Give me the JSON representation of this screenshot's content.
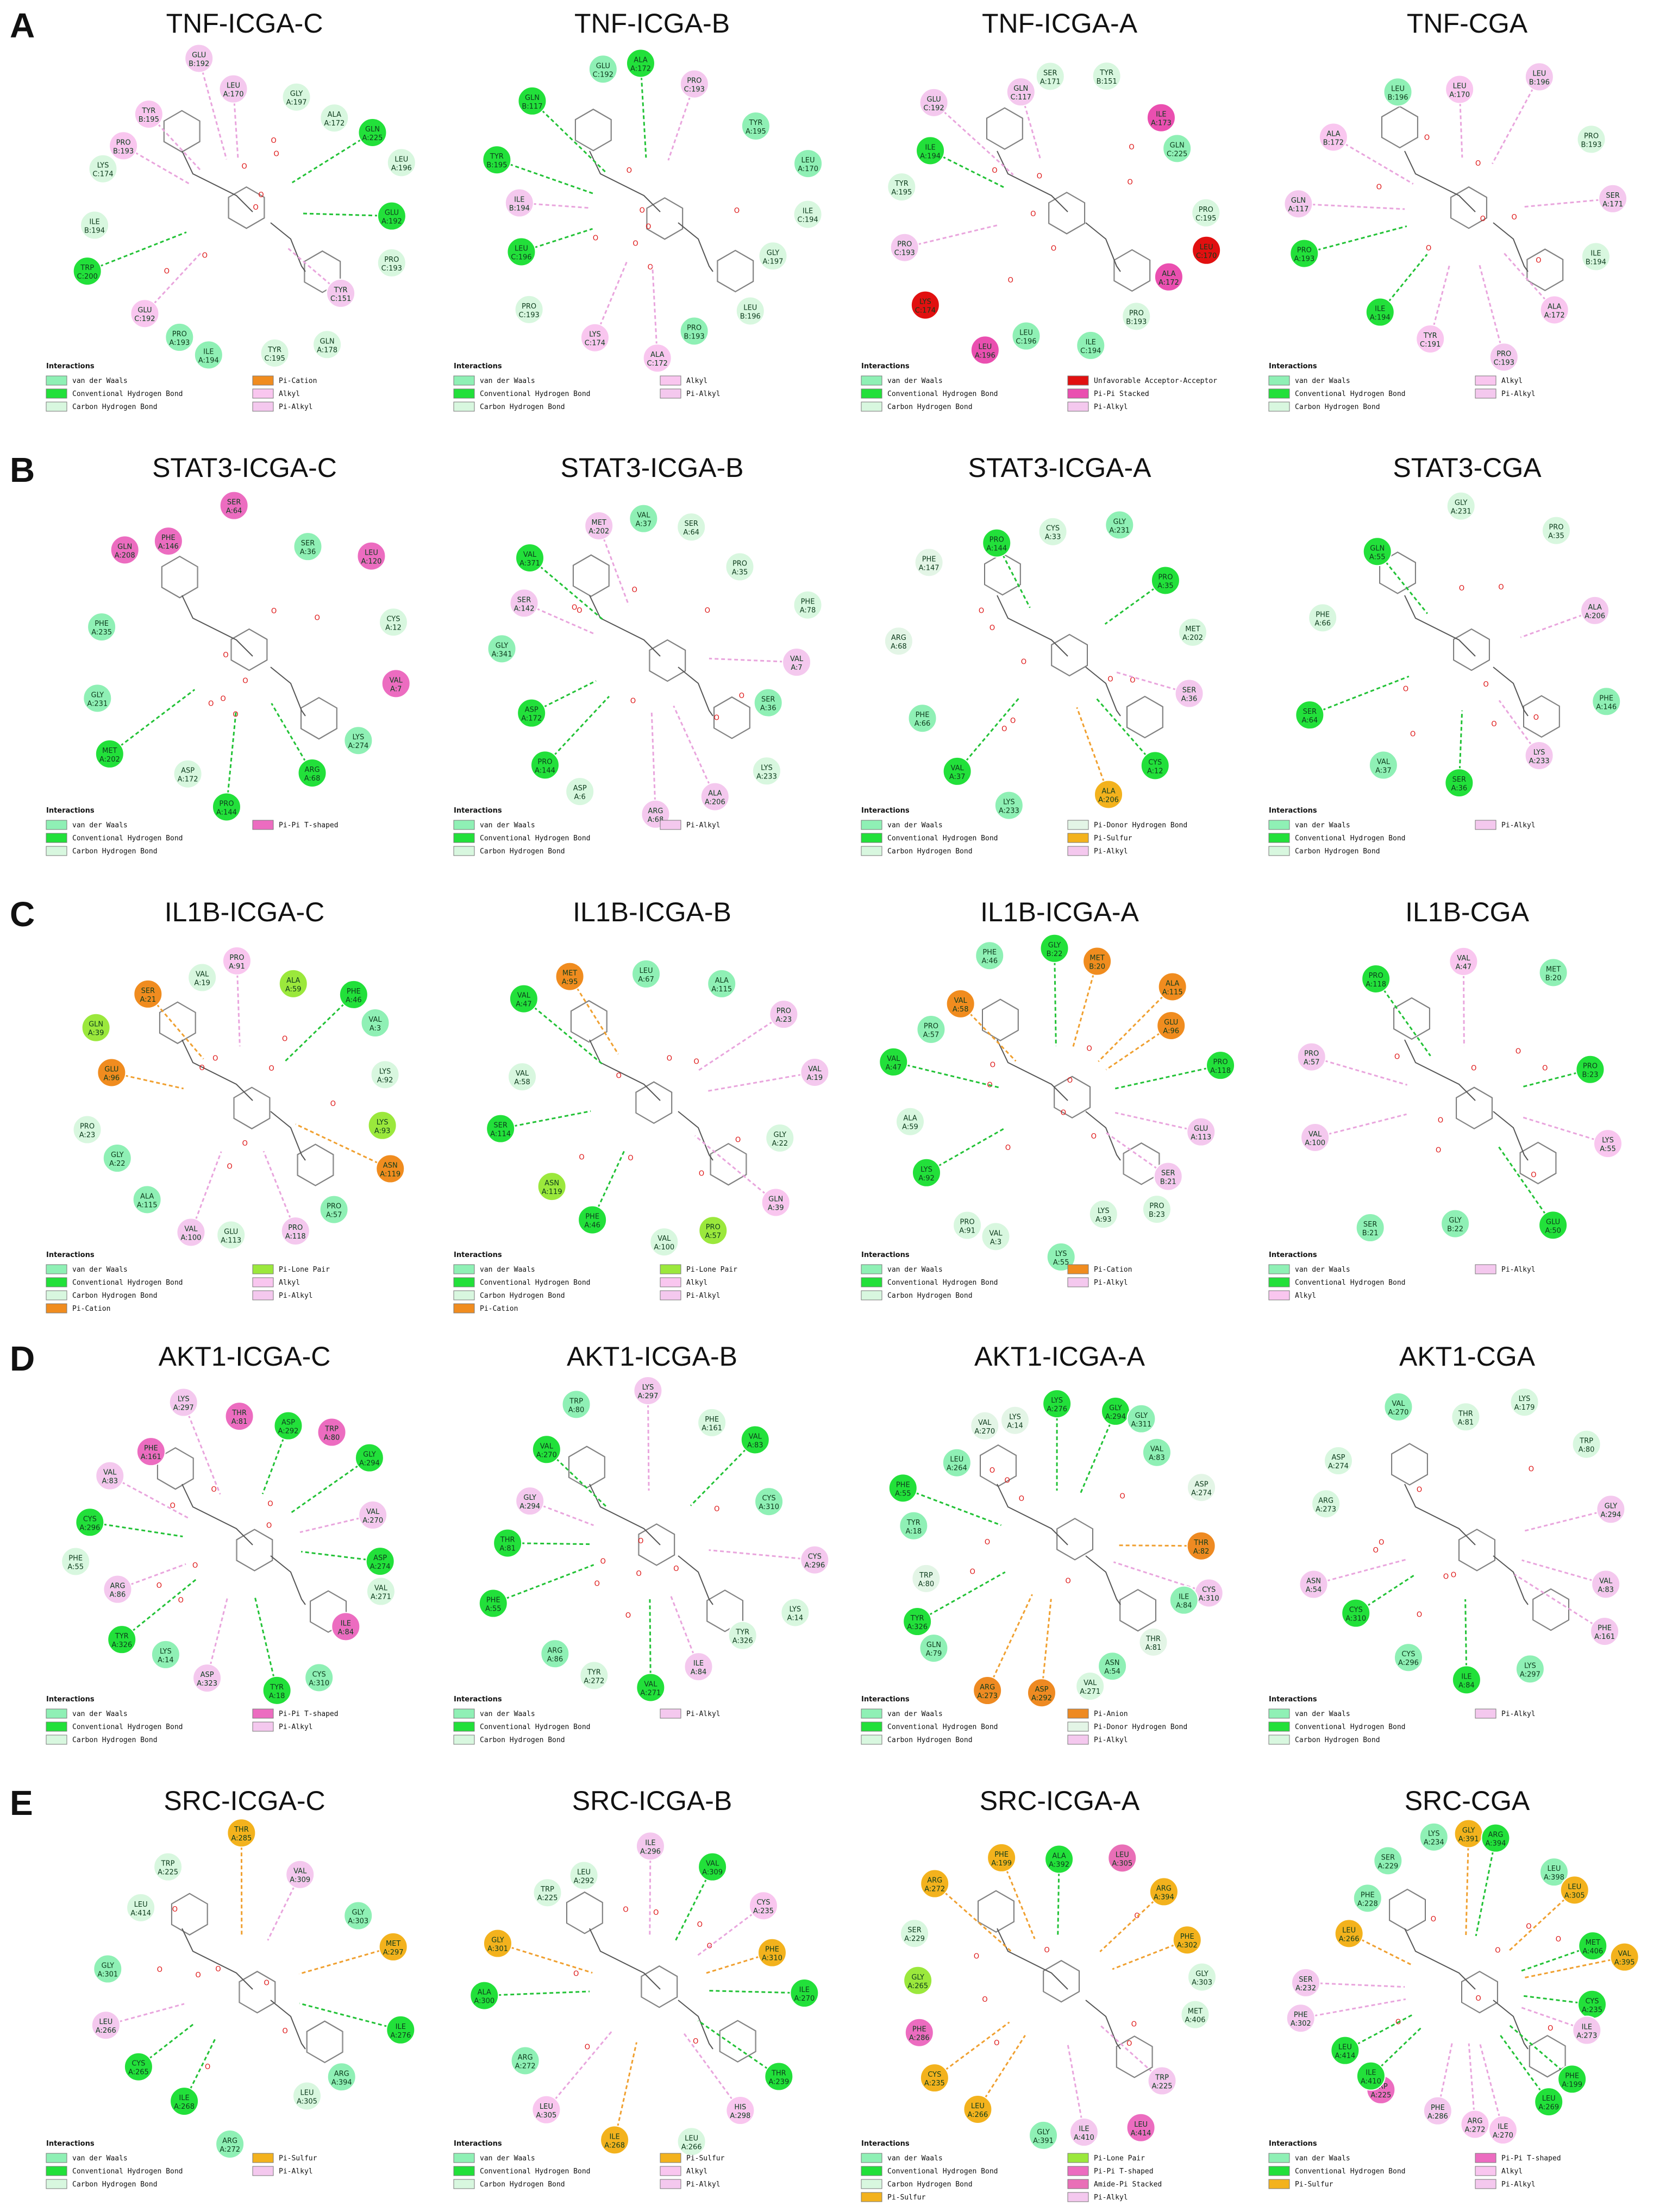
{
  "colors": {
    "van der Waals": "#8ff0b5",
    "Conventional Hydrogen Bond": "#22e03a",
    "Carbon Hydrogen Bond": "#d8f7df",
    "Pi-Cation": "#f08c1f",
    "Alkyl": "#f9c6ef",
    "Pi-Alkyl": "#f4c8ee",
    "Unfavorable Acceptor-Acceptor": "#e11010",
    "Pi-Pi Stacked": "#ea4fb0",
    "Pi-Pi T-shaped": "#ec6cc0",
    "Pi-Donor Hydrogen Bond": "#e3f5e6",
    "Pi-Sulfur": "#f3b21d",
    "Pi-Lone Pair": "#9be83c",
    "Pi-Anion": "#ee8a22",
    "Amide-Pi Stacked": "#e96fb7"
  },
  "rows": [
    {
      "letter": "A",
      "panels": [
        {
          "title": "TNF-ICGA-C",
          "legend_title": "Interactions",
          "legend": [
            "van der Waals",
            "Conventional Hydrogen Bond",
            "Carbon Hydrogen Bond",
            "Pi-Cation",
            "Alkyl",
            "Pi-Alkyl"
          ],
          "residues": [
            "LEU A:170",
            "GLY A:197",
            "ALA A:172",
            "GLN A:225",
            "LEU A:196",
            "GLU A:192",
            "PRO C:193",
            "TYR C:151",
            "GLN A:178",
            "TYR C:195",
            "ILE A:194",
            "PRO A:193",
            "GLU C:192",
            "TRP C:200",
            "ILE B:194",
            "LYS C:174",
            "PRO B:193",
            "TYR B:195",
            "GLU B:192"
          ]
        },
        {
          "title": "TNF-ICGA-B",
          "legend_title": "Interactions",
          "legend": [
            "van der Waals",
            "Conventional Hydrogen Bond",
            "Carbon Hydrogen Bond",
            "Alkyl",
            "Pi-Alkyl"
          ],
          "residues": [
            "ALA A:172",
            "PRO C:193",
            "TYR A:195",
            "LEU A:170",
            "ILE C:194",
            "GLY A:197",
            "LEU B:196",
            "PRO B:193",
            "ALA C:172",
            "LYS C:174",
            "PRO C:193",
            "LEU C:196",
            "ILE B:194",
            "TYR B:195",
            "GLN B:117",
            "GLU C:192"
          ]
        },
        {
          "title": "TNF-ICGA-A",
          "legend_title": "Interactions",
          "legend": [
            "van der Waals",
            "Conventional Hydrogen Bond",
            "Carbon Hydrogen Bond",
            "Unfavorable Acceptor-Acceptor",
            "Pi-Pi Stacked",
            "Pi-Alkyl"
          ],
          "residues": [
            "SER A:171",
            "TYR B:151",
            "ILE A:173",
            "GLN C:225",
            "PRO C:195",
            "LEU C:170",
            "ALA A:172",
            "PRO B:193",
            "ILE C:194",
            "LEU C:196",
            "LEU A:196",
            "LYS C:174",
            "PRO C:193",
            "TYR A:195",
            "ILE A:194",
            "GLU C:192",
            "GLN C:117"
          ]
        },
        {
          "title": "TNF-CGA",
          "legend_title": "Interactions",
          "legend": [
            "van der Waals",
            "Conventional Hydrogen Bond",
            "Carbon Hydrogen Bond",
            "Alkyl",
            "Pi-Alkyl"
          ],
          "residues": [
            "LEU A:170",
            "LEU B:196",
            "PRO B:193",
            "SER A:171",
            "ILE B:194",
            "ALA A:172",
            "PRO C:193",
            "TYR C:191",
            "ILE A:194",
            "PRO A:193",
            "GLN A:117",
            "ALA B:172",
            "LEU B:196"
          ]
        }
      ]
    },
    {
      "letter": "B",
      "panels": [
        {
          "title": "STAT3-ICGA-C",
          "legend_title": "Interactions",
          "legend": [
            "van der Waals",
            "Conventional Hydrogen Bond",
            "Carbon Hydrogen Bond",
            "Pi-Pi T-shaped"
          ],
          "residues": [
            "SER A:64",
            "SER A:36",
            "LEU A:120",
            "CYS A:12",
            "VAL A:7",
            "LYS A:274",
            "ARG A:68",
            "PRO A:144",
            "ASP A:172",
            "MET A:202",
            "GLY A:231",
            "PHE A:235",
            "GLN A:208",
            "PHE A:146"
          ]
        },
        {
          "title": "STAT3-ICGA-B",
          "legend_title": "Interactions",
          "legend": [
            "van der Waals",
            "Conventional Hydrogen Bond",
            "Carbon Hydrogen Bond",
            "Pi-Alkyl"
          ],
          "residues": [
            "VAL A:37",
            "SER A:64",
            "PRO A:35",
            "PHE A:78",
            "VAL A:7",
            "SER A:36",
            "LYS A:233",
            "ALA A:206",
            "ARG A:68",
            "ASP A:6",
            "PRO A:144",
            "ASP A:172",
            "GLY A:341",
            "SER A:142",
            "VAL A:371",
            "MET A:202"
          ]
        },
        {
          "title": "STAT3-ICGA-A",
          "legend_title": "Interactions",
          "legend": [
            "van der Waals",
            "Conventional Hydrogen Bond",
            "Carbon Hydrogen Bond",
            "Pi-Donor Hydrogen Bond",
            "Pi-Sulfur",
            "Pi-Alkyl"
          ],
          "residues": [
            "CYS A:33",
            "GLY A:231",
            "PRO A:35",
            "MET A:202",
            "SER A:36",
            "CYS A:12",
            "ALA A:206",
            "LYS A:233",
            "VAL A:37",
            "PHE A:66",
            "ARG A:68",
            "PHE A:147",
            "PRO A:144"
          ]
        },
        {
          "title": "STAT3-CGA",
          "legend_title": "Interactions",
          "legend": [
            "van der Waals",
            "Conventional Hydrogen Bond",
            "Carbon Hydrogen Bond",
            "Pi-Alkyl"
          ],
          "residues": [
            "GLY A:231",
            "PRO A:35",
            "ALA A:206",
            "PHE A:146",
            "LYS A:233",
            "SER A:36",
            "VAL A:37",
            "SER A:64",
            "PHE A:66",
            "GLN A:55"
          ]
        }
      ]
    },
    {
      "letter": "C",
      "panels": [
        {
          "title": "IL1B-ICGA-C",
          "legend_title": "Interactions",
          "legend": [
            "van der Waals",
            "Conventional Hydrogen Bond",
            "Carbon Hydrogen Bond",
            "Pi-Cation",
            "Pi-Lone Pair",
            "Alkyl",
            "Pi-Alkyl"
          ],
          "residues": [
            "PRO A:91",
            "ALA A:59",
            "PHE A:46",
            "VAL A:3",
            "LYS A:92",
            "LYS A:93",
            "ASN A:119",
            "PRO A:57",
            "PRO A:118",
            "GLU A:113",
            "VAL A:100",
            "ALA A:115",
            "GLY A:22",
            "PRO A:23",
            "GLU A:96",
            "GLN A:39",
            "SER A:21",
            "VAL A:19"
          ]
        },
        {
          "title": "IL1B-ICGA-B",
          "legend_title": "Interactions",
          "legend": [
            "van der Waals",
            "Conventional Hydrogen Bond",
            "Carbon Hydrogen Bond",
            "Pi-Cation",
            "Pi-Lone Pair",
            "Alkyl",
            "Pi-Alkyl"
          ],
          "residues": [
            "LEU A:67",
            "ALA A:115",
            "PRO A:23",
            "VAL A:19",
            "GLY A:22",
            "GLN A:39",
            "PRO A:57",
            "VAL A:100",
            "PHE A:46",
            "ASN A:119",
            "SER A:114",
            "VAL A:58",
            "VAL A:47",
            "MET A:95"
          ]
        },
        {
          "title": "IL1B-ICGA-A",
          "legend_title": "Interactions",
          "legend": [
            "van der Waals",
            "Conventional Hydrogen Bond",
            "Carbon Hydrogen Bond",
            "Pi-Cation",
            "Pi-Alkyl"
          ],
          "residues": [
            "GLY B:22",
            "MET B:20",
            "ALA A:115",
            "GLU A:96",
            "PRO A:118",
            "GLU A:113",
            "SER B:21",
            "PRO B:23",
            "LYS A:93",
            "LYS A:55",
            "VAL A:3",
            "PRO A:91",
            "LYS A:92",
            "ALA A:59",
            "VAL A:47",
            "PRO A:57",
            "VAL A:58",
            "PHE A:46"
          ]
        },
        {
          "title": "IL1B-CGA",
          "legend_title": "Interactions",
          "legend": [
            "van der Waals",
            "Conventional Hydrogen Bond",
            "Alkyl",
            "Pi-Alkyl"
          ],
          "residues": [
            "VAL A:47",
            "MET B:20",
            "PRO B:23",
            "LYS A:55",
            "GLU A:50",
            "GLY B:22",
            "SER B:21",
            "VAL A:100",
            "PRO A:57",
            "PRO A:118"
          ]
        }
      ]
    },
    {
      "letter": "D",
      "panels": [
        {
          "title": "AKT1-ICGA-C",
          "legend_title": "Interactions",
          "legend": [
            "van der Waals",
            "Conventional Hydrogen Bond",
            "Carbon Hydrogen Bond",
            "Pi-Pi T-shaped",
            "Pi-Alkyl"
          ],
          "residues": [
            "THR A:81",
            "ASP A:292",
            "TRP A:80",
            "GLY A:294",
            "VAL A:270",
            "ASP A:274",
            "VAL A:271",
            "ILE A:84",
            "CYS A:310",
            "TYR A:18",
            "ASP A:323",
            "LYS A:14",
            "TYR A:326",
            "ARG A:86",
            "PHE A:55",
            "CYS A:296",
            "VAL A:83",
            "PHE A:161",
            "LYS A:297"
          ]
        },
        {
          "title": "AKT1-ICGA-B",
          "legend_title": "Interactions",
          "legend": [
            "van der Waals",
            "Conventional Hydrogen Bond",
            "Carbon Hydrogen Bond",
            "Pi-Alkyl"
          ],
          "residues": [
            "LYS A:297",
            "PHE A:161",
            "VAL A:83",
            "CYS A:310",
            "CYS A:296",
            "LYS A:14",
            "TYR A:326",
            "ILE A:84",
            "VAL A:271",
            "TYR A:272",
            "ARG A:86",
            "PHE A:55",
            "THR A:81",
            "GLY A:294",
            "VAL A:270",
            "TRP A:80"
          ]
        },
        {
          "title": "AKT1-ICGA-A",
          "legend_title": "Interactions",
          "legend": [
            "van der Waals",
            "Conventional Hydrogen Bond",
            "Carbon Hydrogen Bond",
            "Pi-Anion",
            "Pi-Donor Hydrogen Bond",
            "Pi-Alkyl"
          ],
          "residues": [
            "LYS A:276",
            "GLY A:294",
            "GLY A:311",
            "VAL A:83",
            "ASP A:274",
            "THR A:82",
            "CYS A:310",
            "ILE A:84",
            "THR A:81",
            "ASN A:54",
            "VAL A:271",
            "ASP A:292",
            "ARG A:273",
            "GLN A:79",
            "TYR A:326",
            "TRP A:80",
            "TYR A:18",
            "PHE A:55",
            "LEU A:264",
            "VAL A:270",
            "LYS A:14"
          ]
        },
        {
          "title": "AKT1-CGA",
          "legend_title": "Interactions",
          "legend": [
            "van der Waals",
            "Conventional Hydrogen Bond",
            "Carbon Hydrogen Bond",
            "Pi-Alkyl"
          ],
          "residues": [
            "THR A:81",
            "LYS A:179",
            "TRP A:80",
            "GLY A:294",
            "VAL A:83",
            "PHE A:161",
            "LYS A:297",
            "ILE A:84",
            "CYS A:296",
            "CYS A:310",
            "ASN A:54",
            "ARG A:273",
            "ASP A:274",
            "VAL A:270"
          ]
        }
      ]
    },
    {
      "letter": "E",
      "panels": [
        {
          "title": "SRC-ICGA-C",
          "legend_title": "Interactions",
          "legend": [
            "van der Waals",
            "Conventional Hydrogen Bond",
            "Carbon Hydrogen Bond",
            "Pi-Sulfur",
            "Pi-Alkyl"
          ],
          "residues": [
            "THR A:285",
            "VAL A:309",
            "GLY A:303",
            "MET A:297",
            "ILE A:276",
            "ARG A:394",
            "LEU A:305",
            "ARG A:272",
            "ILE A:268",
            "CYS A:265",
            "LEU A:266",
            "GLY A:301",
            "LEU A:414",
            "TRP A:225"
          ]
        },
        {
          "title": "SRC-ICGA-B",
          "legend_title": "Interactions",
          "legend": [
            "van der Waals",
            "Conventional Hydrogen Bond",
            "Carbon Hydrogen Bond",
            "Pi-Sulfur",
            "Alkyl",
            "Pi-Alkyl"
          ],
          "residues": [
            "ILE A:296",
            "VAL A:309",
            "CYS A:235",
            "PHE A:310",
            "ILE A:270",
            "THR A:239",
            "HIS A:298",
            "LEU A:266",
            "ILE A:268",
            "LEU A:305",
            "ARG A:272",
            "ALA A:300",
            "GLY A:301",
            "TRP A:225",
            "LEU A:292"
          ]
        },
        {
          "title": "SRC-ICGA-A",
          "legend_title": "Interactions",
          "legend": [
            "van der Waals",
            "Conventional Hydrogen Bond",
            "Carbon Hydrogen Bond",
            "Pi-Sulfur",
            "Pi-Lone Pair",
            "Pi-Pi T-shaped",
            "Amide-Pi Stacked",
            "Pi-Alkyl"
          ],
          "residues": [
            "ALA A:392",
            "LEU A:305",
            "ARG A:394",
            "PHE A:302",
            "GLY A:303",
            "MET A:406",
            "TRP A:225",
            "LEU A:414",
            "ILE A:410",
            "GLY A:391",
            "LEU A:266",
            "CYS A:235",
            "PHE A:286",
            "GLY A:265",
            "SER A:229",
            "ARG A:272",
            "PHE A:199"
          ]
        },
        {
          "title": "SRC-CGA",
          "legend_title": "Interactions",
          "legend": [
            "van der Waals",
            "Conventional Hydrogen Bond",
            "Pi-Sulfur",
            "Pi-Pi T-shaped",
            "Alkyl",
            "Pi-Alkyl"
          ],
          "residues": [
            "GLY A:391",
            "ARG A:394",
            "LEU A:398",
            "LEU A:305",
            "MET A:406",
            "VAL A:395",
            "CYS A:235",
            "ILE A:273",
            "PHE A:199",
            "LEU A:269",
            "ILE A:270",
            "ARG A:272",
            "PHE A:286",
            "TRP A:225",
            "ILE A:410",
            "LEU A:414",
            "PHE A:302",
            "SER A:232",
            "LEU A:266",
            "PHE A:228",
            "SER A:229",
            "LYS A:234"
          ]
        }
      ]
    }
  ]
}
